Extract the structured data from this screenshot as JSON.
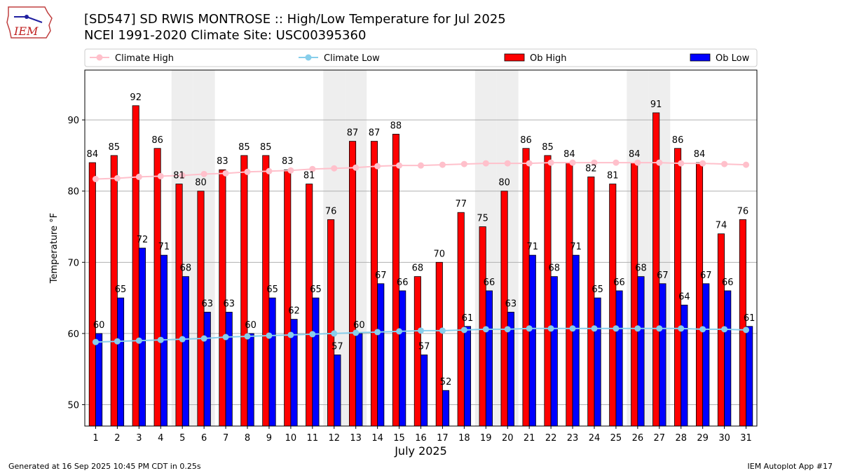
{
  "header": {
    "title_line1": "[SD547] SD RWIS MONTROSE :: High/Low Temperature for Jul 2025",
    "title_line2": "NCEI 1991-2020 Climate Site: USC00395360",
    "logo_text": "IEM"
  },
  "footer": {
    "generated": "Generated at 16 Sep 2025 10:45 PM CDT in 0.25s",
    "app": "IEM Autoplot App #17"
  },
  "chart_data": {
    "type": "bar",
    "xlabel": "July 2025",
    "ylabel": "Temperature °F",
    "ylim": [
      47,
      97
    ],
    "yticks": [
      50,
      60,
      70,
      80,
      90
    ],
    "grid": true,
    "legend_placement": "top",
    "weekend_shading": true,
    "shaded_days": [
      5,
      6,
      12,
      13,
      19,
      20,
      26,
      27
    ],
    "categories": [
      1,
      2,
      3,
      4,
      5,
      6,
      7,
      8,
      9,
      10,
      11,
      12,
      13,
      14,
      15,
      16,
      17,
      18,
      19,
      20,
      21,
      22,
      23,
      24,
      25,
      26,
      27,
      28,
      29,
      30,
      31
    ],
    "series": [
      {
        "name": "Climate High",
        "kind": "line",
        "color": "#ffc0cb",
        "values": [
          81.7,
          81.8,
          82.0,
          82.1,
          82.2,
          82.4,
          82.5,
          82.7,
          82.8,
          82.9,
          83.1,
          83.2,
          83.3,
          83.5,
          83.6,
          83.6,
          83.7,
          83.8,
          83.9,
          83.9,
          83.9,
          84.0,
          84.0,
          84.0,
          84.0,
          84.0,
          84.0,
          83.9,
          83.9,
          83.8,
          83.7
        ]
      },
      {
        "name": "Climate Low",
        "kind": "line",
        "color": "#87ceeb",
        "values": [
          58.8,
          58.9,
          59.0,
          59.1,
          59.2,
          59.3,
          59.5,
          59.6,
          59.7,
          59.8,
          59.9,
          60.0,
          60.1,
          60.2,
          60.3,
          60.4,
          60.4,
          60.5,
          60.6,
          60.6,
          60.7,
          60.7,
          60.7,
          60.7,
          60.7,
          60.7,
          60.7,
          60.7,
          60.6,
          60.6,
          60.5
        ]
      },
      {
        "name": "Ob High",
        "kind": "bar",
        "color": "#ff0000",
        "values": [
          84,
          85,
          92,
          86,
          81,
          80,
          83,
          85,
          85,
          83,
          81,
          76,
          87,
          87,
          88,
          68,
          70,
          77,
          75,
          80,
          86,
          85,
          84,
          82,
          81,
          84,
          91,
          86,
          84,
          74,
          76
        ]
      },
      {
        "name": "Ob Low",
        "kind": "bar",
        "color": "#0000ff",
        "values": [
          60,
          65,
          72,
          71,
          68,
          63,
          63,
          60,
          65,
          62,
          65,
          57,
          60,
          67,
          66,
          57,
          52,
          61,
          66,
          63,
          71,
          68,
          71,
          65,
          66,
          68,
          67,
          64,
          67,
          66,
          61
        ]
      }
    ]
  }
}
